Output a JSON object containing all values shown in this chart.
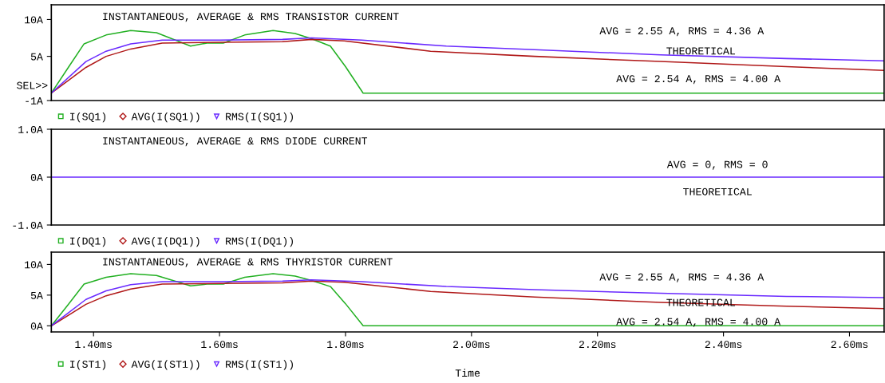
{
  "chart_data": [
    {
      "type": "line",
      "title": "INSTANTANEOUS, AVERAGE & RMS TRANSISTOR CURRENT",
      "xlim": [
        1.333,
        2.655
      ],
      "ylim": [
        -1,
        12
      ],
      "yticks": [
        {
          "value": -1,
          "label": "-1A"
        },
        {
          "value": 5,
          "label": "5A"
        },
        {
          "value": 10,
          "label": "10A"
        }
      ],
      "tick_labels": "y",
      "legend": "bottom",
      "grid": false,
      "annotations": [
        "AVG = 2.55 A, RMS = 4.36 A",
        "THEORETICAL",
        "AVG = 2.54 A, RMS = 4.00 A",
        "SEL>>"
      ],
      "series": [
        {
          "name": "I(SQ1)",
          "color": "#22b022",
          "x": [
            1.333,
            1.36,
            1.385,
            1.42,
            1.459,
            1.5,
            1.554,
            1.58,
            1.606,
            1.64,
            1.685,
            1.72,
            1.746,
            1.776,
            1.8,
            1.828,
            2.0,
            2.655
          ],
          "values": [
            0,
            3.5,
            6.7,
            7.9,
            8.5,
            8.2,
            6.4,
            6.8,
            6.8,
            7.9,
            8.5,
            8.1,
            7.4,
            6.4,
            3.6,
            0,
            0,
            0
          ]
        },
        {
          "name": "AVG(I(SQ1))",
          "color": "#b01818",
          "x": [
            1.333,
            1.388,
            1.42,
            1.459,
            1.509,
            1.6,
            1.7,
            1.746,
            1.798,
            1.935,
            2.1,
            2.3,
            2.5,
            2.655
          ],
          "values": [
            0,
            3.5,
            5.0,
            6.0,
            6.8,
            6.9,
            7.0,
            7.3,
            7.1,
            5.7,
            5.0,
            4.3,
            3.6,
            3.1
          ]
        },
        {
          "name": "RMS(I(SQ1))",
          "color": "#6a2aff",
          "x": [
            1.333,
            1.388,
            1.42,
            1.459,
            1.509,
            1.6,
            1.7,
            1.746,
            1.826,
            1.96,
            2.1,
            2.3,
            2.5,
            2.655
          ],
          "values": [
            0,
            4.3,
            5.7,
            6.7,
            7.2,
            7.2,
            7.3,
            7.5,
            7.2,
            6.4,
            5.9,
            5.2,
            4.7,
            4.4
          ]
        }
      ]
    },
    {
      "type": "line",
      "title": "INSTANTANEOUS, AVERAGE & RMS DIODE CURRENT",
      "xlim": [
        1.333,
        2.655
      ],
      "ylim": [
        -1,
        1
      ],
      "yticks": [
        {
          "value": -1,
          "label": "-1.0A"
        },
        {
          "value": 0,
          "label": "0A"
        },
        {
          "value": 1,
          "label": "1.0A"
        }
      ],
      "tick_labels": "y",
      "legend": "bottom",
      "grid": false,
      "annotations": [
        "AVG = 0, RMS = 0",
        "THEORETICAL"
      ],
      "series": [
        {
          "name": "I(DQ1)",
          "color": "#22b022",
          "values": [
            null,
            null
          ]
        },
        {
          "name": "AVG(I(DQ1))",
          "color": "#b01818",
          "values": [
            null,
            null
          ]
        },
        {
          "name": "RMS(I(DQ1))",
          "color": "#6a2aff",
          "x": [
            1.333,
            2.655
          ],
          "values": [
            0,
            0
          ]
        }
      ]
    },
    {
      "type": "line",
      "title": "INSTANTANEOUS, AVERAGE & RMS THYRISTOR CURRENT",
      "xlabel": "Time",
      "xlim": [
        1.333,
        2.655
      ],
      "ylim": [
        -1,
        12
      ],
      "xticks": [
        {
          "value": 1.4,
          "label": "1.40ms"
        },
        {
          "value": 1.6,
          "label": "1.60ms"
        },
        {
          "value": 1.8,
          "label": "1.80ms"
        },
        {
          "value": 2.0,
          "label": "2.00ms"
        },
        {
          "value": 2.2,
          "label": "2.20ms"
        },
        {
          "value": 2.4,
          "label": "2.40ms"
        },
        {
          "value": 2.6,
          "label": "2.60ms"
        }
      ],
      "yticks": [
        {
          "value": 0,
          "label": "0A"
        },
        {
          "value": 5,
          "label": "5A"
        },
        {
          "value": 10,
          "label": "10A"
        }
      ],
      "legend": "bottom",
      "grid": false,
      "annotations": [
        "AVG = 2.55 A, RMS = 4.36 A",
        "THEORETICAL",
        "AVG = 2.54 A, RMS = 4.00 A"
      ],
      "series": [
        {
          "name": "I(ST1)",
          "color": "#22b022",
          "x": [
            1.333,
            1.36,
            1.385,
            1.42,
            1.459,
            1.5,
            1.554,
            1.58,
            1.606,
            1.64,
            1.685,
            1.72,
            1.746,
            1.776,
            1.8,
            1.828,
            2.0,
            2.655
          ],
          "values": [
            0,
            3.5,
            6.8,
            7.9,
            8.5,
            8.2,
            6.5,
            6.8,
            6.8,
            7.9,
            8.5,
            8.1,
            7.4,
            6.4,
            3.6,
            0,
            0,
            0
          ]
        },
        {
          "name": "AVG(I(ST1))",
          "color": "#b01818",
          "x": [
            1.333,
            1.388,
            1.42,
            1.459,
            1.509,
            1.6,
            1.7,
            1.746,
            1.798,
            1.935,
            2.1,
            2.3,
            2.5,
            2.655
          ],
          "values": [
            0,
            3.5,
            4.9,
            6.0,
            6.8,
            6.9,
            7.0,
            7.3,
            7.1,
            5.6,
            4.7,
            3.8,
            3.2,
            2.8
          ]
        },
        {
          "name": "RMS(I(ST1))",
          "color": "#6a2aff",
          "x": [
            1.333,
            1.388,
            1.42,
            1.459,
            1.509,
            1.6,
            1.7,
            1.746,
            1.826,
            1.96,
            2.1,
            2.3,
            2.5,
            2.655
          ],
          "values": [
            0,
            4.3,
            5.7,
            6.7,
            7.2,
            7.2,
            7.3,
            7.5,
            7.2,
            6.4,
            5.9,
            5.3,
            4.8,
            4.6
          ]
        }
      ]
    }
  ]
}
